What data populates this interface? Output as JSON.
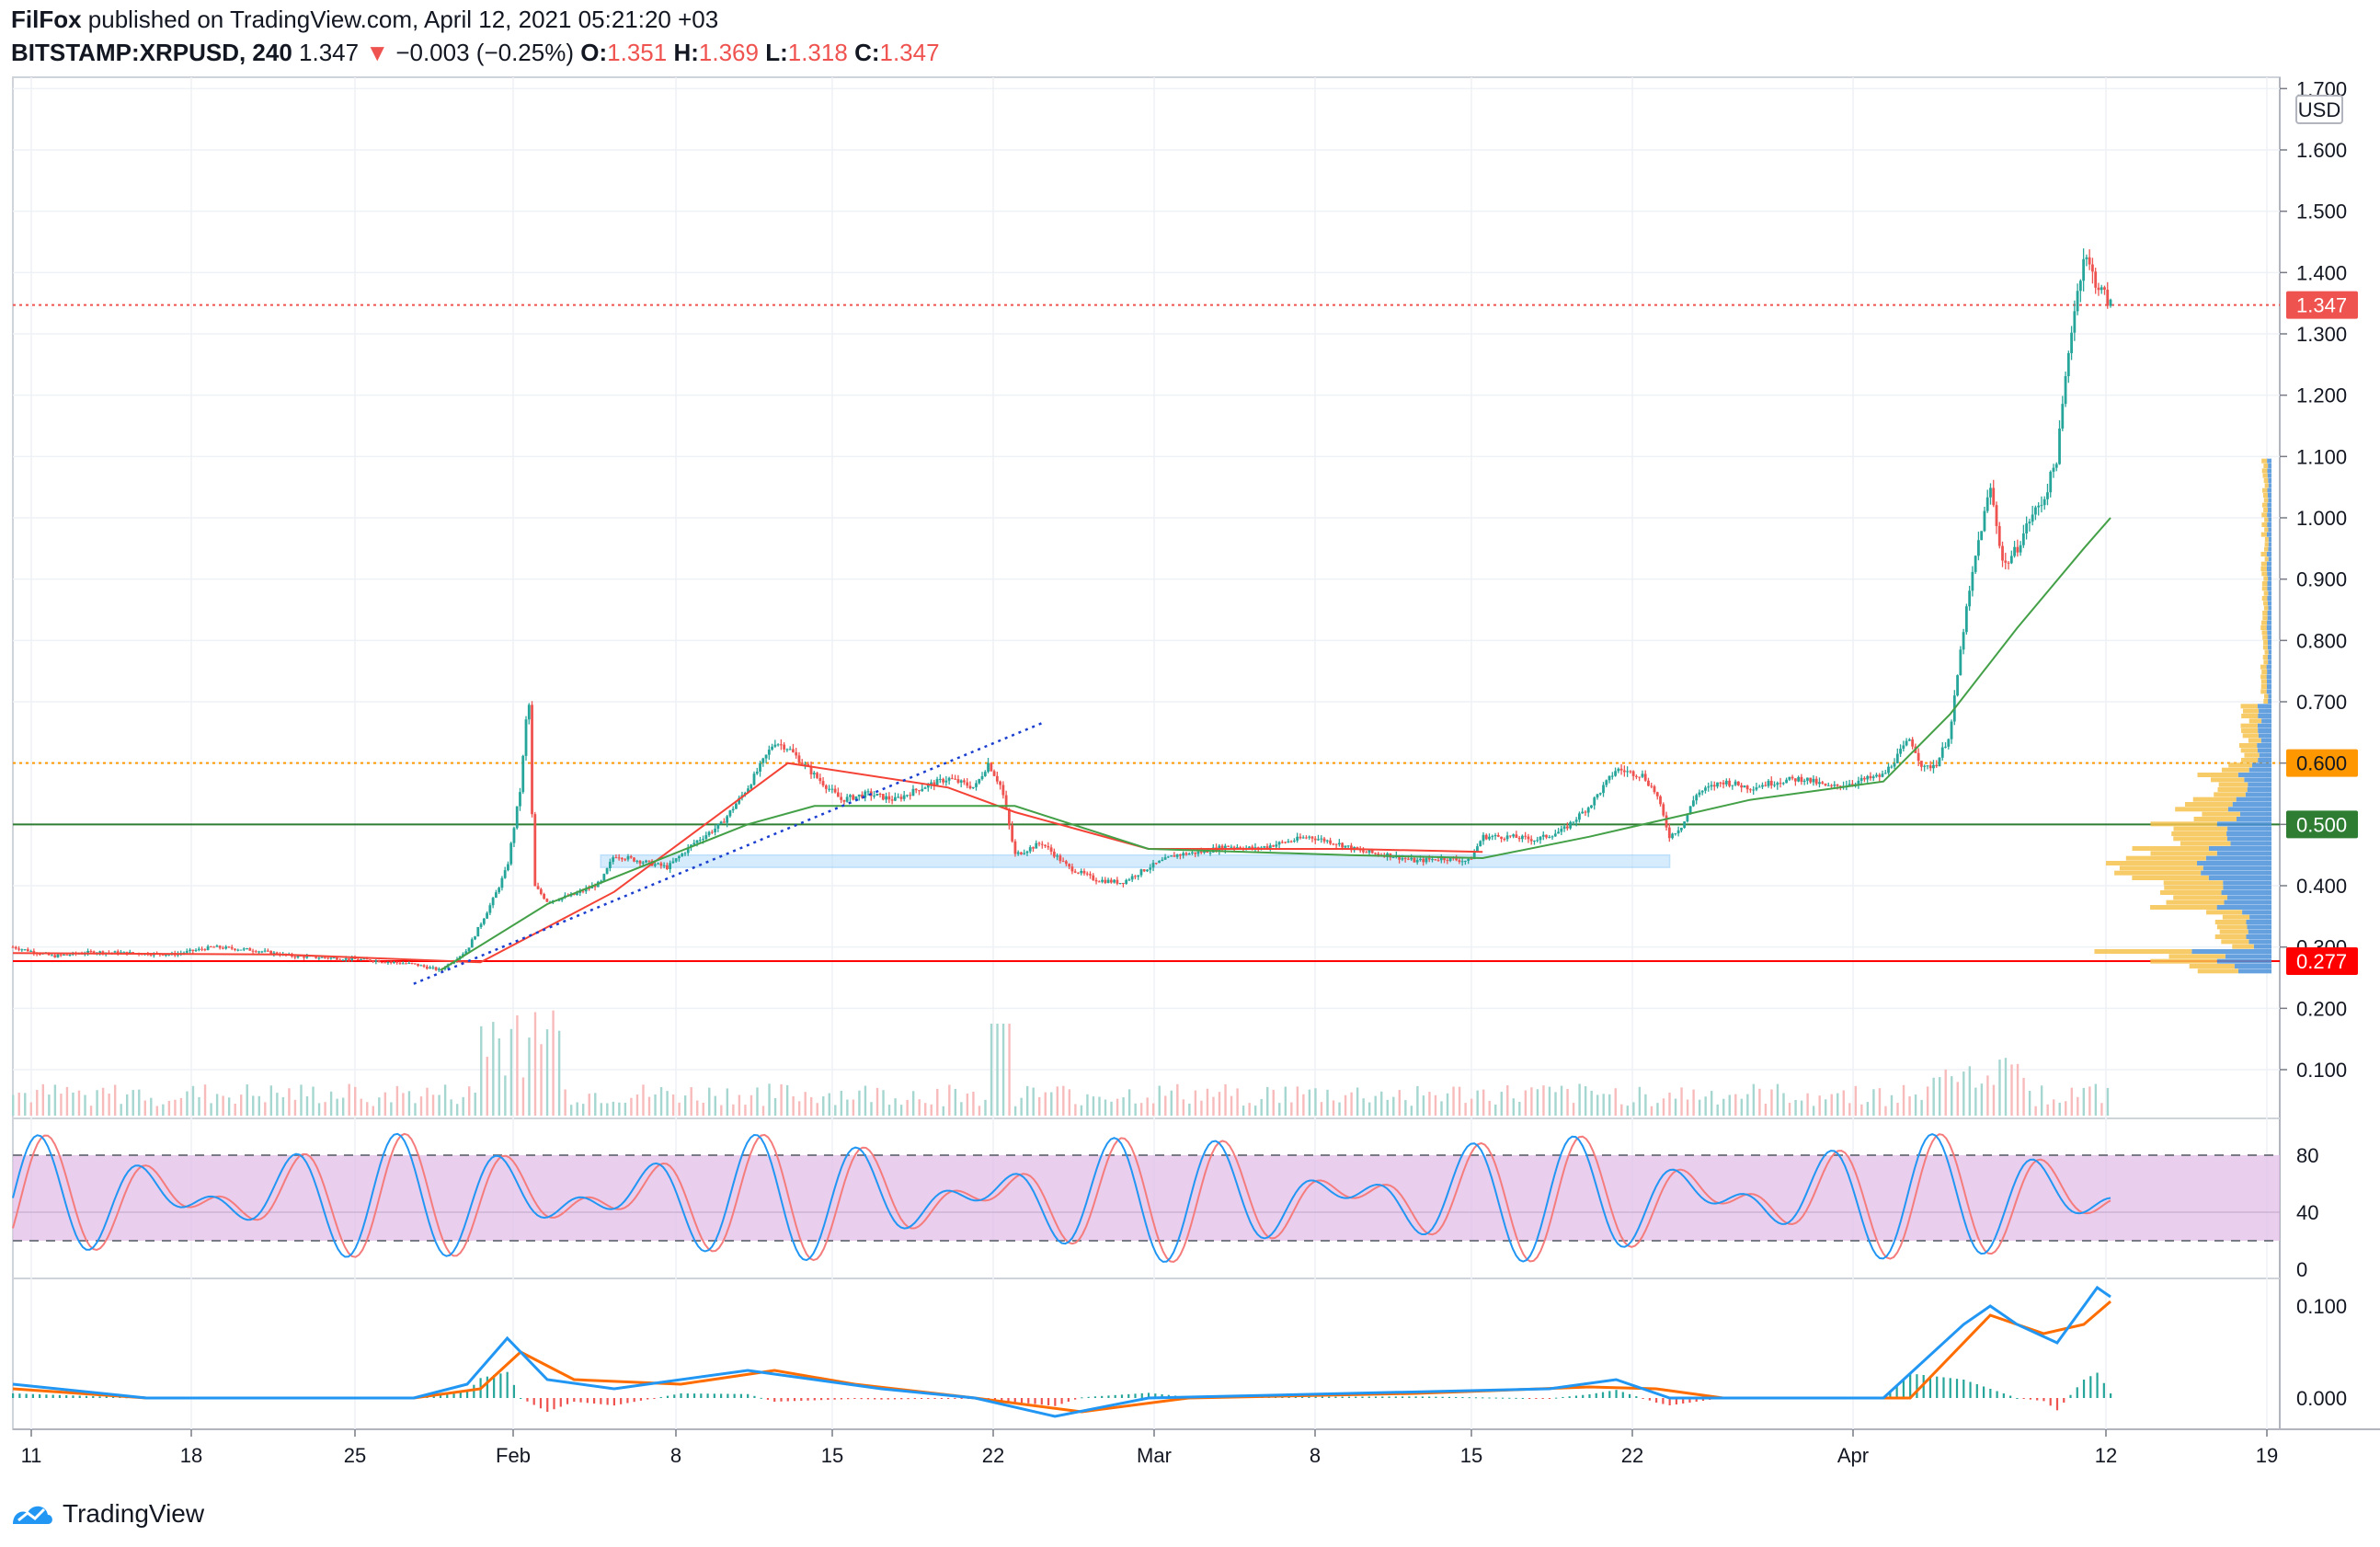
{
  "header": {
    "author": "FilFox",
    "published_text": "published on TradingView.com, April 12, 2021 05:21:20 +03",
    "symbol": "BITSTAMP:XRPUSD, 240",
    "last": "1.347",
    "change_arrow": "▼",
    "change": "−0.003 (−0.25%)",
    "open_label": "O:",
    "open": "1.351",
    "high_label": "H:",
    "high": "1.369",
    "low_label": "L:",
    "low": "1.318",
    "close_label": "C:",
    "close": "1.347"
  },
  "footer": {
    "brand": "TradingView"
  },
  "colors": {
    "up": "#26a69a",
    "down": "#ef5350",
    "ma_red": "#f44336",
    "ma_green": "#43a047",
    "stoch_k": "#2196f3",
    "stoch_d": "#f57c7c",
    "macd": "#2196f3",
    "signal": "#ff6d00",
    "stoch_band": "#e1bee7",
    "price_tag": "#ef5350",
    "level_600": "#ff9800",
    "level_500": "#2e7d32",
    "level_277": "#ff0000",
    "vp_blue": "#4a90d9",
    "vp_yellow": "#f5c24e"
  },
  "chart_data": {
    "type": "candlestick",
    "currency_label": "USD",
    "price_axis_ticks": [
      "1.700",
      "1.600",
      "1.500",
      "1.400",
      "1.300",
      "1.200",
      "1.100",
      "1.000",
      "0.900",
      "0.800",
      "0.700",
      "0.600",
      "0.500",
      "0.400",
      "0.300",
      "0.200",
      "0.100"
    ],
    "price_tags": [
      {
        "label": "1.347",
        "value": 1.347,
        "color": "#ef5350"
      },
      {
        "label": "0.600",
        "value": 0.6,
        "color": "#ff9800"
      },
      {
        "label": "0.500",
        "value": 0.5,
        "color": "#2e7d32"
      },
      {
        "label": "0.277",
        "value": 0.277,
        "color": "#ff0000"
      }
    ],
    "horizontal_levels": [
      {
        "value": 0.6,
        "style": "dotted",
        "color": "#ff9800"
      },
      {
        "value": 0.5,
        "style": "solid",
        "color": "#2e7d32"
      },
      {
        "value": 0.277,
        "style": "solid",
        "color": "#ff0000"
      },
      {
        "value": 1.347,
        "style": "dotted",
        "color": "#ef5350"
      }
    ],
    "x_ticks": [
      "11",
      "18",
      "25",
      "Feb",
      "8",
      "15",
      "22",
      "Mar",
      "8",
      "15",
      "22",
      "Apr",
      "12",
      "19"
    ],
    "price_path": [
      [
        0,
        0.3
      ],
      [
        3,
        0.285
      ],
      [
        6,
        0.292
      ],
      [
        9,
        0.29
      ],
      [
        12,
        0.288
      ],
      [
        15,
        0.3
      ],
      [
        18,
        0.295
      ],
      [
        21,
        0.285
      ],
      [
        24,
        0.282
      ],
      [
        27,
        0.278
      ],
      [
        30,
        0.272
      ],
      [
        32,
        0.262
      ],
      [
        34,
        0.295
      ],
      [
        36,
        0.38
      ],
      [
        37,
        0.43
      ],
      [
        38,
        0.56
      ],
      [
        38.6,
        0.72
      ],
      [
        39,
        0.4
      ],
      [
        40,
        0.375
      ],
      [
        42,
        0.385
      ],
      [
        44,
        0.405
      ],
      [
        45,
        0.45
      ],
      [
        47,
        0.44
      ],
      [
        49,
        0.43
      ],
      [
        51,
        0.47
      ],
      [
        53,
        0.5
      ],
      [
        55,
        0.56
      ],
      [
        57,
        0.635
      ],
      [
        58,
        0.625
      ],
      [
        60,
        0.58
      ],
      [
        62,
        0.54
      ],
      [
        64,
        0.55
      ],
      [
        66,
        0.54
      ],
      [
        68,
        0.56
      ],
      [
        70,
        0.575
      ],
      [
        72,
        0.56
      ],
      [
        73,
        0.6
      ],
      [
        74,
        0.56
      ],
      [
        75,
        0.45
      ],
      [
        77,
        0.47
      ],
      [
        79,
        0.43
      ],
      [
        81,
        0.41
      ],
      [
        83,
        0.405
      ],
      [
        85,
        0.43
      ],
      [
        87,
        0.45
      ],
      [
        89,
        0.455
      ],
      [
        91,
        0.465
      ],
      [
        93,
        0.46
      ],
      [
        95,
        0.47
      ],
      [
        97,
        0.48
      ],
      [
        99,
        0.47
      ],
      [
        101,
        0.455
      ],
      [
        103,
        0.45
      ],
      [
        105,
        0.44
      ],
      [
        107,
        0.445
      ],
      [
        109,
        0.44
      ],
      [
        110,
        0.48
      ],
      [
        112,
        0.48
      ],
      [
        114,
        0.475
      ],
      [
        116,
        0.49
      ],
      [
        118,
        0.53
      ],
      [
        120,
        0.59
      ],
      [
        122,
        0.58
      ],
      [
        123,
        0.55
      ],
      [
        124,
        0.48
      ],
      [
        125,
        0.5
      ],
      [
        126,
        0.55
      ],
      [
        128,
        0.57
      ],
      [
        130,
        0.56
      ],
      [
        132,
        0.57
      ],
      [
        134,
        0.575
      ],
      [
        136,
        0.56
      ],
      [
        138,
        0.57
      ],
      [
        140,
        0.58
      ],
      [
        141,
        0.61
      ],
      [
        142,
        0.64
      ],
      [
        143,
        0.59
      ],
      [
        144,
        0.6
      ],
      [
        145,
        0.65
      ],
      [
        146,
        0.82
      ],
      [
        147,
        0.95
      ],
      [
        148,
        1.05
      ],
      [
        149,
        0.92
      ],
      [
        150,
        0.95
      ],
      [
        151,
        1.0
      ],
      [
        152,
        1.03
      ],
      [
        153,
        1.1
      ],
      [
        154,
        1.3
      ],
      [
        155,
        1.43
      ],
      [
        156,
        1.38
      ],
      [
        157,
        1.347
      ]
    ],
    "ma_red_path": [
      [
        0,
        0.29
      ],
      [
        20,
        0.288
      ],
      [
        35,
        0.275
      ],
      [
        45,
        0.39
      ],
      [
        58,
        0.6
      ],
      [
        70,
        0.56
      ],
      [
        75,
        0.52
      ],
      [
        85,
        0.46
      ],
      [
        100,
        0.46
      ],
      [
        110,
        0.455
      ]
    ],
    "ma_green_path": [
      [
        32,
        0.262
      ],
      [
        40,
        0.37
      ],
      [
        55,
        0.5
      ],
      [
        60,
        0.53
      ],
      [
        75,
        0.53
      ],
      [
        85,
        0.46
      ],
      [
        100,
        0.45
      ],
      [
        110,
        0.445
      ],
      [
        118,
        0.48
      ],
      [
        130,
        0.54
      ],
      [
        140,
        0.57
      ],
      [
        145,
        0.68
      ],
      [
        150,
        0.82
      ],
      [
        155,
        0.95
      ],
      [
        157,
        1.0
      ]
    ],
    "trendline_dotted": {
      "from": [
        30,
        0.24
      ],
      "to": [
        77,
        0.665
      ]
    },
    "support_box": {
      "x_from": 44,
      "x_to": 124,
      "y_from": 0.43,
      "y_to": 0.45
    },
    "stoch_ticks": [
      "80",
      "40",
      "0"
    ],
    "stoch_band": [
      20,
      80
    ],
    "macd_ticks": [
      "0.100",
      "0.000"
    ],
    "macd_path": [
      [
        0,
        0.015
      ],
      [
        10,
        0.0
      ],
      [
        30,
        0.0
      ],
      [
        34,
        0.015
      ],
      [
        37,
        0.065
      ],
      [
        40,
        0.02
      ],
      [
        45,
        0.01
      ],
      [
        55,
        0.03
      ],
      [
        60,
        0.02
      ],
      [
        65,
        0.01
      ],
      [
        72,
        0.0
      ],
      [
        78,
        -0.02
      ],
      [
        85,
        0.0
      ],
      [
        100,
        0.005
      ],
      [
        115,
        0.01
      ],
      [
        120,
        0.02
      ],
      [
        124,
        0.0
      ],
      [
        140,
        0.0
      ],
      [
        146,
        0.08
      ],
      [
        148,
        0.1
      ],
      [
        150,
        0.08
      ],
      [
        153,
        0.06
      ],
      [
        156,
        0.12
      ],
      [
        157,
        0.11
      ]
    ],
    "signal_path": [
      [
        0,
        0.01
      ],
      [
        10,
        0.0
      ],
      [
        30,
        0.0
      ],
      [
        35,
        0.01
      ],
      [
        38,
        0.05
      ],
      [
        42,
        0.02
      ],
      [
        50,
        0.015
      ],
      [
        57,
        0.03
      ],
      [
        63,
        0.015
      ],
      [
        72,
        0.0
      ],
      [
        80,
        -0.015
      ],
      [
        88,
        0.0
      ],
      [
        105,
        0.005
      ],
      [
        118,
        0.012
      ],
      [
        123,
        0.01
      ],
      [
        128,
        0.0
      ],
      [
        142,
        0.0
      ],
      [
        148,
        0.09
      ],
      [
        152,
        0.07
      ],
      [
        155,
        0.08
      ],
      [
        157,
        0.105
      ]
    ]
  }
}
